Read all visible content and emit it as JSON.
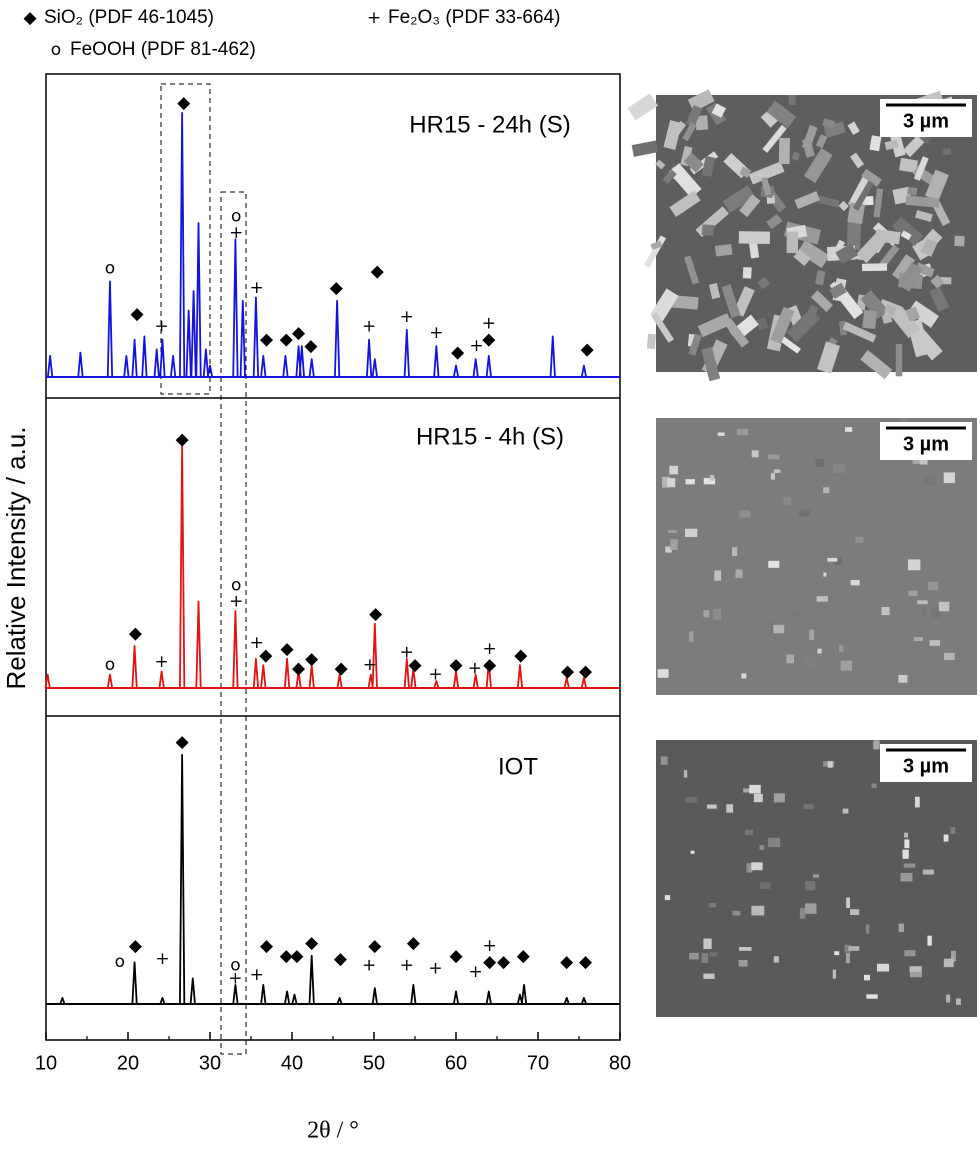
{
  "phases": [
    {
      "symbol": "◆",
      "name": "SiO₂ (PDF 46-1045)"
    },
    {
      "symbol": "+",
      "name": "Fe₂O₃ (PDF 33-664)"
    },
    {
      "symbol": "o",
      "name": "FeOOH (PDF 81-462)"
    }
  ],
  "figure": {
    "xlabel": "2θ / °",
    "ylabel": "Relative Intensity / a.u."
  },
  "chart_data": [
    {
      "type": "line",
      "title": "HR15 - 24h (S)",
      "color": "#1414dc",
      "xlim": [
        10,
        80
      ],
      "ylim": [
        0,
        100
      ],
      "baseline": 6.5,
      "x": [
        10.5,
        14.2,
        17.8,
        19.8,
        20.8,
        22.0,
        23.5,
        24.2,
        25.5,
        26.6,
        27.4,
        28.0,
        28.6,
        29.5,
        30.0,
        33.1,
        34.0,
        35.6,
        36.5,
        39.2,
        40.8,
        41.2,
        42.4,
        45.5,
        49.4,
        50.1,
        54.0,
        57.6,
        60.0,
        62.4,
        64.0,
        71.8,
        75.6
      ],
      "values": [
        13,
        14,
        36,
        13,
        18,
        19,
        15,
        18,
        13,
        88,
        27,
        33,
        54,
        15,
        10,
        49,
        30,
        31,
        13,
        13,
        16,
        16,
        12,
        30,
        18,
        12,
        21,
        16,
        10,
        12,
        13,
        19,
        10
      ],
      "peak_marks": [
        {
          "x": [
            26.8,
            21.1,
            36.9,
            39.3,
            40.8,
            42.3,
            45.4,
            50.4,
            60.2,
            64.0,
            76.0
          ],
          "y": [
            91,
            26,
            18,
            18,
            20,
            16,
            34,
            39,
            14,
            18,
            15
          ]
        },
        {
          "x": [
            24.1,
            33.2,
            35.7,
            49.4,
            54.0,
            57.6,
            62.5,
            64.0
          ],
          "y": [
            22,
            51,
            34,
            22,
            25,
            20,
            16,
            23
          ]
        },
        {
          "x": [
            17.8,
            33.2
          ],
          "y": [
            40,
            56
          ]
        }
      ]
    },
    {
      "type": "line",
      "title": "HR15 - 4h (S)",
      "color": "#e01414",
      "xlim": [
        10,
        80
      ],
      "ylim": [
        0,
        100
      ],
      "baseline": 8.8,
      "x": [
        10.2,
        17.8,
        20.8,
        24.1,
        26.6,
        28.6,
        33.1,
        35.6,
        36.5,
        39.4,
        40.8,
        42.4,
        45.8,
        49.6,
        50.1,
        54.0,
        54.8,
        57.6,
        60.0,
        62.4,
        64.0,
        67.8,
        73.5,
        75.6
      ],
      "values": [
        13,
        13,
        22,
        14,
        85,
        36,
        33,
        18,
        16,
        18,
        14,
        16,
        13,
        13,
        29,
        18,
        15,
        11,
        14,
        13,
        17,
        16,
        12,
        12
      ],
      "peak_marks": [
        {
          "x": [
            26.6,
            20.9,
            36.8,
            39.4,
            40.8,
            42.4,
            46.0,
            50.2,
            55.0,
            60.0,
            64.1,
            67.9,
            73.6,
            75.8
          ],
          "y": [
            87,
            26,
            19,
            21,
            15,
            18,
            15,
            32,
            16,
            16,
            16,
            19,
            14,
            14
          ]
        },
        {
          "x": [
            24.1,
            33.2,
            35.7,
            49.5,
            54.0,
            57.5,
            62.3,
            64.1
          ],
          "y": [
            17,
            36,
            23,
            16,
            20,
            13,
            15,
            21
          ]
        },
        {
          "x": [
            17.8,
            33.2
          ],
          "y": [
            16,
            41
          ]
        }
      ]
    },
    {
      "type": "line",
      "title": "IOT",
      "color": "#000000",
      "xlim": [
        10,
        80
      ],
      "ylim": [
        0,
        100
      ],
      "baseline": 11.1,
      "xticks": [
        10,
        20,
        30,
        40,
        50,
        60,
        70,
        80
      ],
      "x": [
        12.0,
        20.8,
        24.2,
        26.6,
        27.9,
        33.1,
        36.5,
        39.4,
        40.3,
        42.4,
        45.8,
        50.1,
        54.8,
        60.0,
        64.0,
        67.8,
        68.3,
        73.5,
        75.6
      ],
      "values": [
        13,
        24,
        13,
        88,
        19,
        17,
        17,
        15,
        14,
        26,
        13,
        16,
        17,
        15,
        15,
        14,
        17,
        13,
        13
      ],
      "peak_marks": [
        {
          "x": [
            26.6,
            20.9,
            36.9,
            39.3,
            40.6,
            42.4,
            45.9,
            50.1,
            54.8,
            60.0,
            64.1,
            65.8,
            68.2,
            73.5,
            75.8
          ],
          "y": [
            92,
            29,
            29,
            26,
            26,
            30,
            25,
            29,
            30,
            26,
            24,
            24,
            26,
            24,
            24
          ]
        },
        {
          "x": [
            24.2,
            33.1,
            35.7,
            49.4,
            54.0,
            57.5,
            62.4,
            64.1
          ],
          "y": [
            25,
            19,
            20,
            23,
            23,
            22,
            21,
            29
          ]
        },
        {
          "x": [
            19.0,
            33.1
          ],
          "y": [
            24,
            23
          ]
        }
      ]
    }
  ],
  "images": [
    {
      "scale_bar": "3 µm"
    },
    {
      "scale_bar": "3 µm"
    },
    {
      "scale_bar": "3 µm"
    }
  ]
}
